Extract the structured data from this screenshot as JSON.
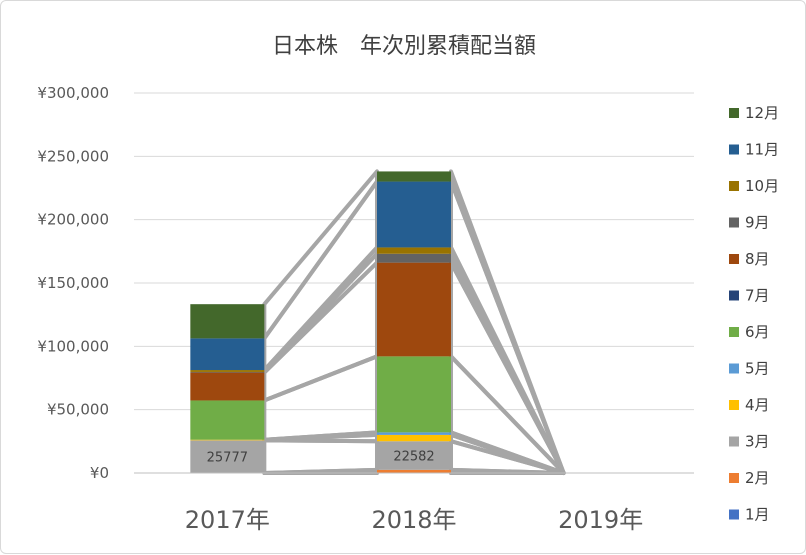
{
  "chart_data": {
    "type": "bar",
    "stacked": true,
    "title": "日本株　年次別累積配当額",
    "categories": [
      "2017年",
      "2018年",
      "2019年"
    ],
    "ylim": [
      0,
      300000
    ],
    "yticks": [
      0,
      50000,
      100000,
      150000,
      200000,
      250000,
      300000
    ],
    "ytick_labels": [
      "¥0",
      "¥50,000",
      "¥100,000",
      "¥150,000",
      "¥200,000",
      "¥250,000",
      "¥300,000"
    ],
    "grid": true,
    "legend_position": "right",
    "series": [
      {
        "name": "1月",
        "color": "#4472c4",
        "values": [
          0,
          0,
          0
        ]
      },
      {
        "name": "2月",
        "color": "#ed7d31",
        "values": [
          0,
          2500,
          0
        ]
      },
      {
        "name": "3月",
        "color": "#a5a5a5",
        "values": [
          25777,
          22582,
          0
        ]
      },
      {
        "name": "4月",
        "color": "#ffc000",
        "values": [
          500,
          5000,
          0
        ]
      },
      {
        "name": "5月",
        "color": "#5b9bd5",
        "values": [
          0,
          2000,
          0
        ]
      },
      {
        "name": "6月",
        "color": "#70ad47",
        "values": [
          31000,
          60000,
          0
        ]
      },
      {
        "name": "7月",
        "color": "#264478",
        "values": [
          0,
          0,
          0
        ]
      },
      {
        "name": "8月",
        "color": "#9e480e",
        "values": [
          22000,
          74000,
          0
        ]
      },
      {
        "name": "9月",
        "color": "#636363",
        "values": [
          500,
          7000,
          0
        ]
      },
      {
        "name": "10月",
        "color": "#997300",
        "values": [
          1500,
          5000,
          0
        ]
      },
      {
        "name": "11月",
        "color": "#255e91",
        "values": [
          25000,
          52000,
          0
        ]
      },
      {
        "name": "12月",
        "color": "#43682b",
        "values": [
          27000,
          8000,
          0
        ]
      }
    ],
    "data_labels": {
      "series": "3月",
      "values": [
        "25777",
        "22582",
        ""
      ]
    }
  }
}
